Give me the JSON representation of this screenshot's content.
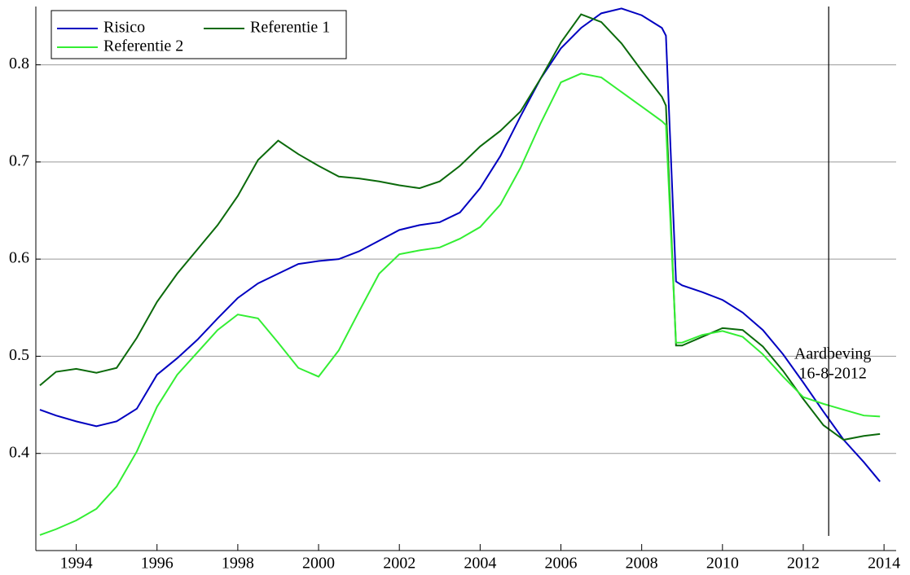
{
  "chart_data": {
    "type": "line",
    "x": [
      1993.1,
      1993.5,
      1994,
      1994.5,
      1995,
      1995.5,
      1996,
      1996.5,
      1997,
      1997.5,
      1998,
      1998.5,
      1999,
      1999.5,
      2000,
      2000.5,
      2001,
      2001.5,
      2002,
      2002.5,
      2003,
      2003.5,
      2004,
      2004.5,
      2005,
      2005.5,
      2006,
      2006.5,
      2007,
      2007.5,
      2008,
      2008.5,
      2008.6,
      2008.85,
      2009,
      2009.5,
      2010,
      2010.5,
      2011,
      2011.5,
      2012,
      2012.5,
      2013,
      2013.5,
      2013.9
    ],
    "series": [
      {
        "name": "Risico",
        "color": "#0000c0",
        "values": [
          0.445,
          0.439,
          0.433,
          0.428,
          0.433,
          0.446,
          0.481,
          0.498,
          0.517,
          0.539,
          0.56,
          0.575,
          0.585,
          0.595,
          0.598,
          0.6,
          0.608,
          0.619,
          0.63,
          0.635,
          0.638,
          0.648,
          0.673,
          0.706,
          0.747,
          0.786,
          0.817,
          0.838,
          0.853,
          0.858,
          0.851,
          0.838,
          0.83,
          0.577,
          0.573,
          0.566,
          0.558,
          0.545,
          0.527,
          0.502,
          0.473,
          0.443,
          0.414,
          0.391,
          0.371
        ]
      },
      {
        "name": "Referentie 1",
        "color": "#0b6a0b",
        "values": [
          0.47,
          0.484,
          0.487,
          0.483,
          0.488,
          0.519,
          0.556,
          0.585,
          0.61,
          0.635,
          0.665,
          0.702,
          0.722,
          0.708,
          0.696,
          0.685,
          0.683,
          0.68,
          0.676,
          0.673,
          0.68,
          0.696,
          0.716,
          0.732,
          0.752,
          0.786,
          0.823,
          0.852,
          0.844,
          0.822,
          0.794,
          0.767,
          0.758,
          0.511,
          0.511,
          0.52,
          0.529,
          0.527,
          0.51,
          0.485,
          0.456,
          0.429,
          0.414,
          0.418,
          0.42
        ]
      },
      {
        "name": "Referentie 2",
        "color": "#33ee33",
        "values": [
          0.316,
          0.322,
          0.331,
          0.343,
          0.366,
          0.402,
          0.448,
          0.481,
          0.504,
          0.527,
          0.543,
          0.539,
          0.514,
          0.488,
          0.479,
          0.506,
          0.546,
          0.585,
          0.605,
          0.609,
          0.612,
          0.621,
          0.633,
          0.656,
          0.694,
          0.74,
          0.782,
          0.791,
          0.787,
          0.772,
          0.757,
          0.742,
          0.738,
          0.514,
          0.514,
          0.522,
          0.526,
          0.52,
          0.502,
          0.479,
          0.458,
          0.451,
          0.445,
          0.439,
          0.438
        ]
      }
    ],
    "xlim": [
      1993,
      2014.3
    ],
    "xticks": [
      1994,
      1996,
      1998,
      2000,
      2002,
      2004,
      2006,
      2008,
      2010,
      2012,
      2014
    ],
    "ylim": [
      0.3,
      0.86
    ],
    "yticks": [
      0.4,
      0.5,
      0.6,
      0.7,
      0.8
    ],
    "grid": true,
    "legend": "upper-left",
    "annotation": {
      "x": 2012.63,
      "text": [
        "Aardbeving",
        "16-8-2012"
      ]
    }
  }
}
